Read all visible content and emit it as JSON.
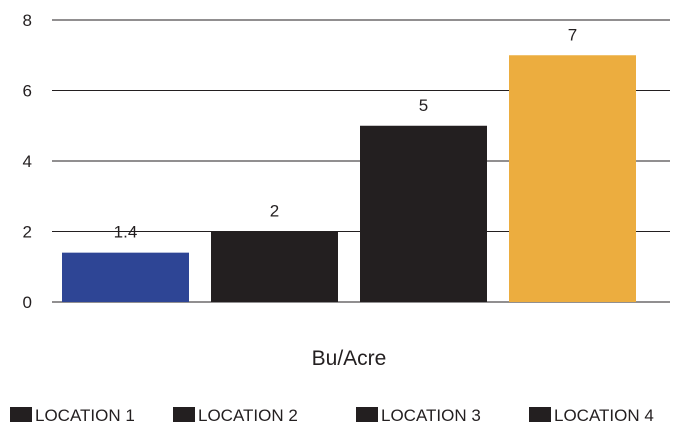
{
  "chart_data": {
    "type": "bar",
    "categories": [
      "LOCATION 1",
      "LOCATION 2",
      "LOCATION 3",
      "LOCATION 4"
    ],
    "values": [
      1.4,
      2,
      5,
      7
    ],
    "data_labels": [
      "1.4",
      "2",
      "5",
      "7"
    ],
    "colors": [
      "#2e4595",
      "#231f20",
      "#231f20",
      "#ecad3f"
    ],
    "title": "",
    "xlabel": "Bu/Acre",
    "ylabel": "",
    "ylim": [
      0,
      8
    ],
    "yticks": [
      0,
      2,
      4,
      6,
      8
    ],
    "grid": true,
    "legend": {
      "placement": "bottom",
      "entries": [
        "LOCATION 1",
        "LOCATION 2",
        "LOCATION 3",
        "LOCATION 4"
      ],
      "swatch_color": "#231f20"
    }
  }
}
